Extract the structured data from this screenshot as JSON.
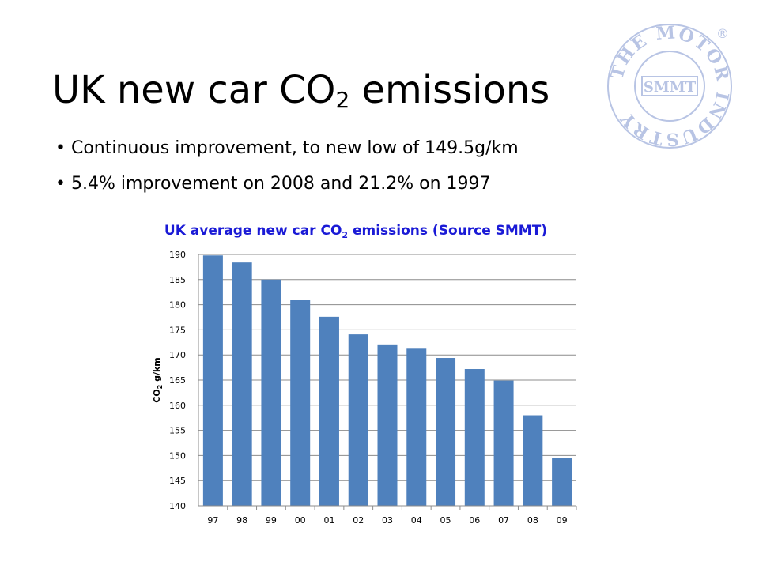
{
  "slide": {
    "title_main": "UK new car CO",
    "title_sub": "2",
    "title_end": " emissions",
    "bullets": [
      "Continuous improvement, to new low of 149.5g/km",
      "5.4% improvement on 2008 and 21.2% on 1997"
    ],
    "logo": {
      "ring_text": "THE MOTOR INDUSTRY",
      "center_text": "SMMT",
      "registered_mark": "®",
      "color": "#b8c4e4"
    }
  },
  "colors": {
    "bar": "#4f81bd",
    "chart_title": "#1a1ad6",
    "grid": "#8c8c8c"
  },
  "chart_data": {
    "type": "bar",
    "title_prefix": "UK average new car CO",
    "title_sub": "2",
    "title_suffix": " emissions (Source SMMT)",
    "ylabel_prefix": "CO",
    "ylabel_sub": "2",
    "ylabel_suffix": " g/km",
    "xlabel": "",
    "categories": [
      "97",
      "98",
      "99",
      "00",
      "01",
      "02",
      "03",
      "04",
      "05",
      "06",
      "07",
      "08",
      "09"
    ],
    "values": [
      189.8,
      188.4,
      185.0,
      181.0,
      177.6,
      174.1,
      172.1,
      171.4,
      169.4,
      167.2,
      164.9,
      158.0,
      149.5
    ],
    "ylim": [
      140,
      190
    ],
    "yticks": [
      140,
      145,
      150,
      155,
      160,
      165,
      170,
      175,
      180,
      185,
      190
    ],
    "grid": true,
    "legend": "none"
  }
}
